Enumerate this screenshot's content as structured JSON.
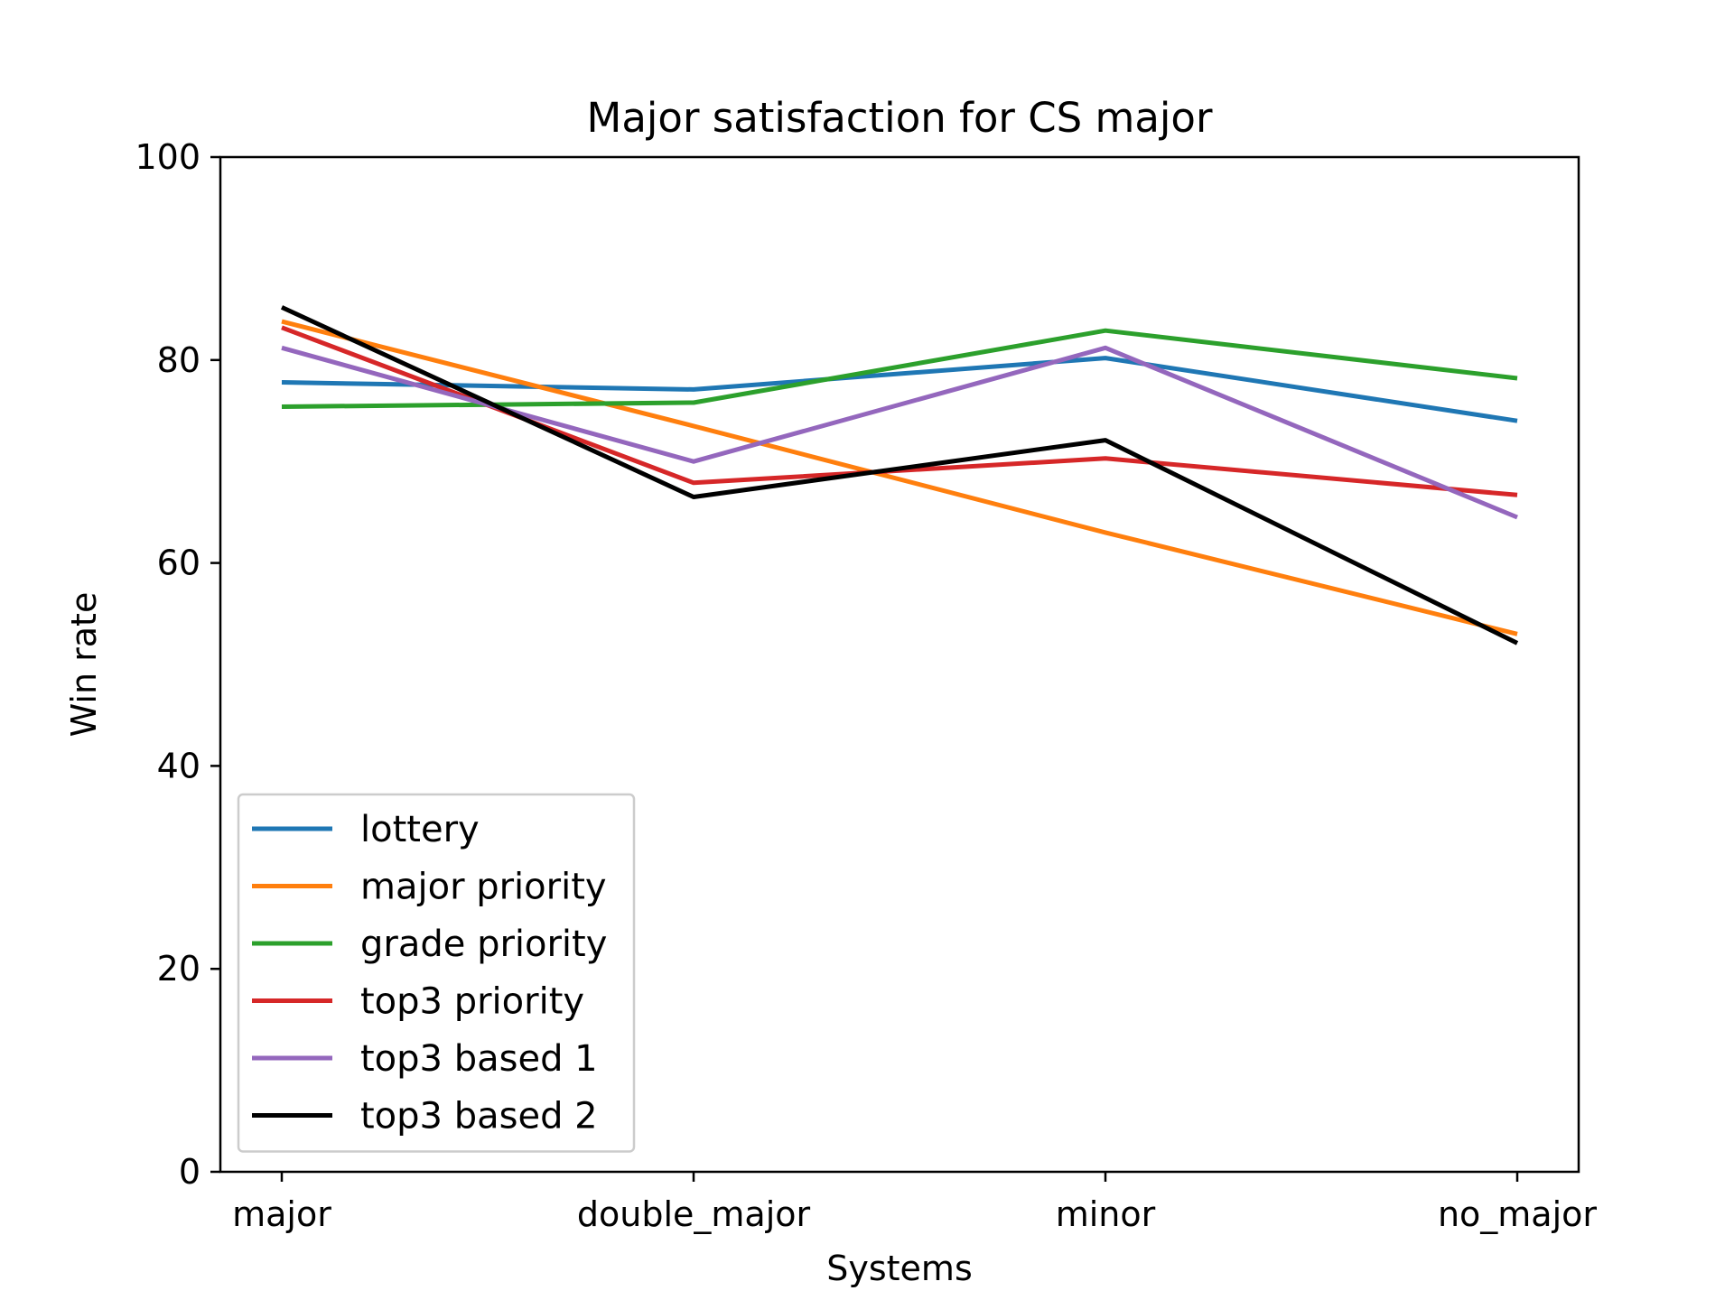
{
  "chart_data": {
    "type": "line",
    "title": "Major satisfaction for CS major",
    "xlabel": "Systems",
    "ylabel": "Win rate",
    "categories": [
      "major",
      "double_major",
      "minor",
      "no_major"
    ],
    "ylim": [
      0,
      100
    ],
    "yticks": [
      "0",
      "20",
      "40",
      "60",
      "80",
      "100"
    ],
    "grid": false,
    "legend_position": "bottom-left",
    "series": [
      {
        "name": "lottery",
        "color": "#1f77b4",
        "values": [
          77.8,
          77.1,
          80.2,
          74.0
        ]
      },
      {
        "name": "major priority",
        "color": "#ff7f0e",
        "values": [
          83.8,
          73.5,
          63.0,
          53.0
        ]
      },
      {
        "name": "grade priority",
        "color": "#2ca02c",
        "values": [
          75.4,
          75.8,
          82.9,
          78.2
        ]
      },
      {
        "name": "top3 priority",
        "color": "#d62728",
        "values": [
          83.2,
          67.9,
          70.3,
          66.7
        ]
      },
      {
        "name": "top3 based 1",
        "color": "#9467bd",
        "values": [
          81.2,
          70.0,
          81.2,
          64.5
        ]
      },
      {
        "name": "top3 based 2",
        "color": "#000000",
        "values": [
          85.2,
          66.5,
          72.1,
          52.1
        ]
      }
    ]
  }
}
